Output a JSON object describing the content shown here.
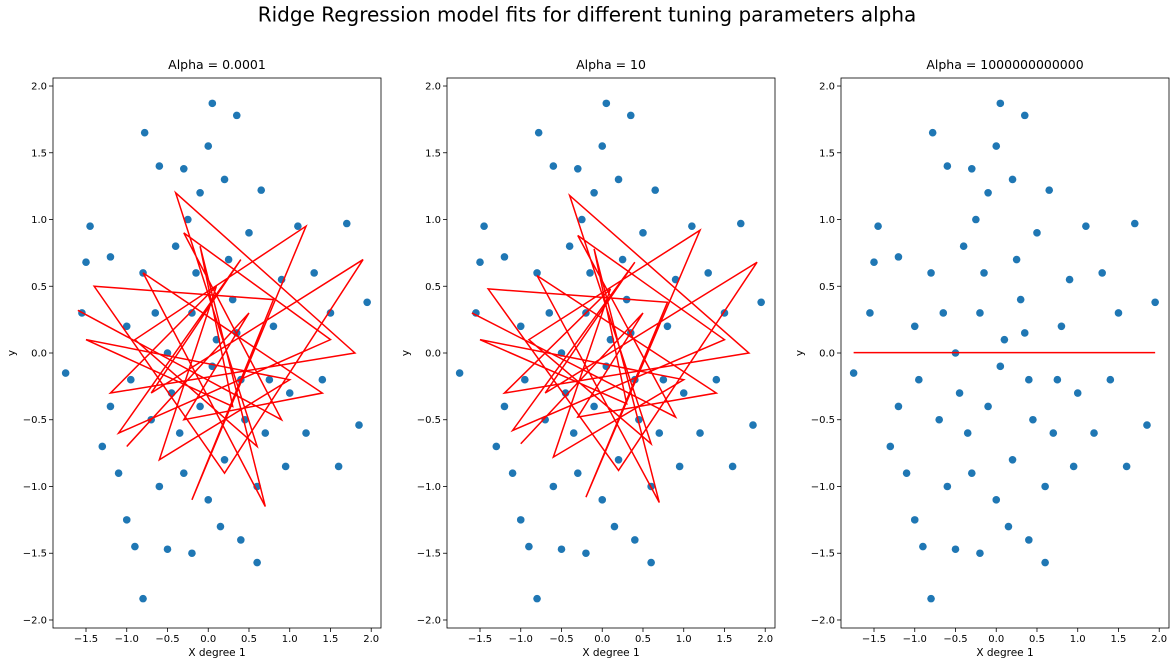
{
  "title": "Ridge Regression model fits for different tuning parameters alpha",
  "chart_data": [
    {
      "type": "scatter",
      "title": "Alpha = 0.0001",
      "xlabel": "X degree 1",
      "ylabel": "y",
      "xlim": [
        -1.905,
        2.12
      ],
      "ylim": [
        -2.06,
        2.06
      ],
      "xticks": [
        {
          "value": -1.5,
          "label": "−1.5"
        },
        {
          "value": -1.0,
          "label": "−1.0"
        },
        {
          "value": -0.5,
          "label": "−0.5"
        },
        {
          "value": 0,
          "label": "0.0"
        },
        0.5,
        {
          "value": 1,
          "label": "1.0"
        },
        1.5,
        {
          "value": 2,
          "label": "2.0"
        }
      ],
      "yticks": [
        {
          "value": -2,
          "label": "−2.0"
        },
        {
          "value": -1.5,
          "label": "−1.5"
        },
        {
          "value": -1,
          "label": "−1.0"
        },
        {
          "value": -0.5,
          "label": "−0.5"
        },
        {
          "value": 0,
          "label": "0.0"
        },
        0.5,
        {
          "value": 1,
          "label": "1.0"
        },
        1.5,
        {
          "value": 2,
          "label": "2.0"
        }
      ],
      "series": [
        {
          "type": "scatter",
          "color": "#1f77b4",
          "x": [
            -0.8,
            0.05,
            0.35,
            -0.78,
            1.95,
            -1.75,
            1.7,
            -1.45,
            0.6,
            -0.2,
            -0.9,
            -1.0,
            -0.5,
            0.4,
            1.85,
            1.6,
            1.3,
            -1.5,
            -1.2,
            0.0,
            -0.6,
            -0.3,
            0.65,
            0.2,
            -0.1,
            0.5,
            -0.4,
            0.9,
            0.3,
            -0.2,
            0.1,
            -0.5,
            0.4,
            -0.1,
            0.7,
            -0.7,
            0.2,
            -0.3,
            1.0,
            -1.0,
            1.2,
            -1.2,
            0.8,
            -0.8,
            0.0,
            0.6,
            -0.6,
            1.5,
            -1.3,
            0.25,
            -0.15,
            0.45,
            -0.45,
            0.05,
            1.1,
            -1.1,
            0.15,
            -0.25,
            0.75,
            -0.65,
            1.4,
            -1.55,
            0.95,
            -0.95,
            0.35,
            -0.35
          ],
          "values": [
            -1.84,
            1.87,
            1.78,
            1.65,
            0.38,
            -0.15,
            0.97,
            0.95,
            -1.57,
            -1.5,
            -1.45,
            -1.25,
            -1.47,
            -1.4,
            -0.54,
            -0.85,
            0.6,
            0.68,
            0.72,
            1.55,
            1.4,
            1.38,
            1.22,
            1.3,
            1.2,
            0.9,
            0.8,
            0.55,
            0.4,
            0.3,
            0.1,
            0.0,
            -0.2,
            -0.4,
            -0.6,
            -0.5,
            -0.8,
            -0.9,
            -0.3,
            0.2,
            -0.6,
            -0.4,
            0.2,
            0.6,
            -1.1,
            -1.0,
            -1.0,
            0.3,
            -0.7,
            0.7,
            0.6,
            -0.5,
            -0.3,
            -0.1,
            0.95,
            -0.9,
            -1.3,
            1.0,
            -0.2,
            0.3,
            -0.2,
            0.3,
            -0.85,
            -0.2,
            0.15,
            -0.6
          ]
        },
        {
          "type": "line",
          "color": "#ff0000",
          "x": [
            -1.6,
            0.9,
            -0.3,
            1.5,
            -1.1,
            0.4,
            -0.7,
            1.9,
            0.2,
            -1.4,
            0.8,
            -0.2,
            1.2,
            -0.9,
            0.6,
            -0.4,
            1.8,
            -1.2,
            0.1,
            -0.6,
            1.0,
            -1.5,
            0.3,
            -0.1,
            0.7,
            -0.8,
            1.4,
            -0.3,
            0.5,
            -1.0
          ],
          "values": [
            0.32,
            -0.5,
            0.9,
            0.1,
            -0.6,
            0.7,
            -0.3,
            0.7,
            -0.9,
            0.5,
            0.4,
            -1.1,
            0.95,
            0.1,
            -0.7,
            1.2,
            0.0,
            -0.3,
            0.5,
            -0.8,
            -0.2,
            0.1,
            -0.4,
            0.8,
            -1.15,
            0.6,
            -0.3,
            -0.5,
            0.3,
            -0.7
          ]
        }
      ]
    },
    {
      "type": "scatter",
      "title": "Alpha = 10",
      "xlabel": "X degree 1",
      "ylabel": "y",
      "xlim": [
        -1.905,
        2.12
      ],
      "ylim": [
        -2.06,
        2.06
      ],
      "xticks": [
        {
          "value": -1.5,
          "label": "−1.5"
        },
        {
          "value": -1.0,
          "label": "−1.0"
        },
        {
          "value": -0.5,
          "label": "−0.5"
        },
        {
          "value": 0,
          "label": "0.0"
        },
        0.5,
        {
          "value": 1,
          "label": "1.0"
        },
        1.5,
        {
          "value": 2,
          "label": "2.0"
        }
      ],
      "yticks": [
        {
          "value": -2,
          "label": "−2.0"
        },
        {
          "value": -1.5,
          "label": "−1.5"
        },
        {
          "value": -1,
          "label": "−1.0"
        },
        {
          "value": -0.5,
          "label": "−0.5"
        },
        {
          "value": 0,
          "label": "0.0"
        },
        0.5,
        {
          "value": 1,
          "label": "1.0"
        },
        1.5,
        {
          "value": 2,
          "label": "2.0"
        }
      ],
      "series": [
        {
          "type": "scatter",
          "color": "#1f77b4",
          "x": [
            -0.8,
            0.05,
            0.35,
            -0.78,
            1.95,
            -1.75,
            1.7,
            -1.45,
            0.6,
            -0.2,
            -0.9,
            -1.0,
            -0.5,
            0.4,
            1.85,
            1.6,
            1.3,
            -1.5,
            -1.2,
            0.0,
            -0.6,
            -0.3,
            0.65,
            0.2,
            -0.1,
            0.5,
            -0.4,
            0.9,
            0.3,
            -0.2,
            0.1,
            -0.5,
            0.4,
            -0.1,
            0.7,
            -0.7,
            0.2,
            -0.3,
            1.0,
            -1.0,
            1.2,
            -1.2,
            0.8,
            -0.8,
            0.0,
            0.6,
            -0.6,
            1.5,
            -1.3,
            0.25,
            -0.15,
            0.45,
            -0.45,
            0.05,
            1.1,
            -1.1,
            0.15,
            -0.25,
            0.75,
            -0.65,
            1.4,
            -1.55,
            0.95,
            -0.95,
            0.35,
            -0.35
          ],
          "values": [
            -1.84,
            1.87,
            1.78,
            1.65,
            0.38,
            -0.15,
            0.97,
            0.95,
            -1.57,
            -1.5,
            -1.45,
            -1.25,
            -1.47,
            -1.4,
            -0.54,
            -0.85,
            0.6,
            0.68,
            0.72,
            1.55,
            1.4,
            1.38,
            1.22,
            1.3,
            1.2,
            0.9,
            0.8,
            0.55,
            0.4,
            0.3,
            0.1,
            0.0,
            -0.2,
            -0.4,
            -0.6,
            -0.5,
            -0.8,
            -0.9,
            -0.3,
            0.2,
            -0.6,
            -0.4,
            0.2,
            0.6,
            -1.1,
            -1.0,
            -1.0,
            0.3,
            -0.7,
            0.7,
            0.6,
            -0.5,
            -0.3,
            -0.1,
            0.95,
            -0.9,
            -1.3,
            1.0,
            -0.2,
            0.3,
            -0.2,
            0.3,
            -0.85,
            -0.2,
            0.15,
            -0.6
          ]
        },
        {
          "type": "line",
          "color": "#ff0000",
          "x": [
            -1.6,
            0.9,
            -0.3,
            1.5,
            -1.1,
            0.4,
            -0.7,
            1.9,
            0.2,
            -1.4,
            0.8,
            -0.2,
            1.2,
            -0.9,
            0.6,
            -0.4,
            1.8,
            -1.2,
            0.1,
            -0.6,
            1.0,
            -1.5,
            0.3,
            -0.1,
            0.7,
            -0.8,
            1.4,
            -0.3,
            0.5,
            -1.0
          ],
          "values": [
            0.3,
            -0.48,
            0.88,
            0.1,
            -0.58,
            0.68,
            -0.3,
            0.68,
            -0.88,
            0.48,
            0.38,
            -1.08,
            0.92,
            0.1,
            -0.68,
            1.18,
            0.0,
            -0.3,
            0.48,
            -0.78,
            -0.2,
            0.1,
            -0.38,
            0.78,
            -1.12,
            0.58,
            -0.3,
            -0.48,
            0.3,
            -0.68
          ]
        }
      ]
    },
    {
      "type": "scatter",
      "title": "Alpha = 1000000000000",
      "xlabel": "X degree 1",
      "ylabel": "y",
      "xlim": [
        -1.905,
        2.12
      ],
      "ylim": [
        -2.06,
        2.06
      ],
      "xticks": [
        {
          "value": -1.5,
          "label": "−1.5"
        },
        {
          "value": -1.0,
          "label": "−1.0"
        },
        {
          "value": -0.5,
          "label": "−0.5"
        },
        {
          "value": 0,
          "label": "0.0"
        },
        0.5,
        {
          "value": 1,
          "label": "1.0"
        },
        1.5,
        {
          "value": 2,
          "label": "2.0"
        }
      ],
      "yticks": [
        {
          "value": -2,
          "label": "−2.0"
        },
        {
          "value": -1.5,
          "label": "−1.5"
        },
        {
          "value": -1,
          "label": "−1.0"
        },
        {
          "value": -0.5,
          "label": "−0.5"
        },
        {
          "value": 0,
          "label": "0.0"
        },
        0.5,
        {
          "value": 1,
          "label": "1.0"
        },
        1.5,
        {
          "value": 2,
          "label": "2.0"
        }
      ],
      "series": [
        {
          "type": "scatter",
          "color": "#1f77b4",
          "x": [
            -0.8,
            0.05,
            0.35,
            -0.78,
            1.95,
            -1.75,
            1.7,
            -1.45,
            0.6,
            -0.2,
            -0.9,
            -1.0,
            -0.5,
            0.4,
            1.85,
            1.6,
            1.3,
            -1.5,
            -1.2,
            0.0,
            -0.6,
            -0.3,
            0.65,
            0.2,
            -0.1,
            0.5,
            -0.4,
            0.9,
            0.3,
            -0.2,
            0.1,
            -0.5,
            0.4,
            -0.1,
            0.7,
            -0.7,
            0.2,
            -0.3,
            1.0,
            -1.0,
            1.2,
            -1.2,
            0.8,
            -0.8,
            0.0,
            0.6,
            -0.6,
            1.5,
            -1.3,
            0.25,
            -0.15,
            0.45,
            -0.45,
            0.05,
            1.1,
            -1.1,
            0.15,
            -0.25,
            0.75,
            -0.65,
            1.4,
            -1.55,
            0.95,
            -0.95,
            0.35,
            -0.35
          ],
          "values": [
            -1.84,
            1.87,
            1.78,
            1.65,
            0.38,
            -0.15,
            0.97,
            0.95,
            -1.57,
            -1.5,
            -1.45,
            -1.25,
            -1.47,
            -1.4,
            -0.54,
            -0.85,
            0.6,
            0.68,
            0.72,
            1.55,
            1.4,
            1.38,
            1.22,
            1.3,
            1.2,
            0.9,
            0.8,
            0.55,
            0.4,
            0.3,
            0.1,
            0.0,
            -0.2,
            -0.4,
            -0.6,
            -0.5,
            -0.8,
            -0.9,
            -0.3,
            0.2,
            -0.6,
            -0.4,
            0.2,
            0.6,
            -1.1,
            -1.0,
            -1.0,
            0.3,
            -0.7,
            0.7,
            0.6,
            -0.5,
            -0.3,
            -0.1,
            0.95,
            -0.9,
            -1.3,
            1.0,
            -0.2,
            0.3,
            -0.2,
            0.3,
            -0.85,
            -0.2,
            0.15,
            -0.6
          ]
        },
        {
          "type": "line",
          "color": "#ff0000",
          "x": [
            -1.75,
            1.95
          ],
          "values": [
            0.003,
            0.003
          ]
        }
      ]
    }
  ]
}
